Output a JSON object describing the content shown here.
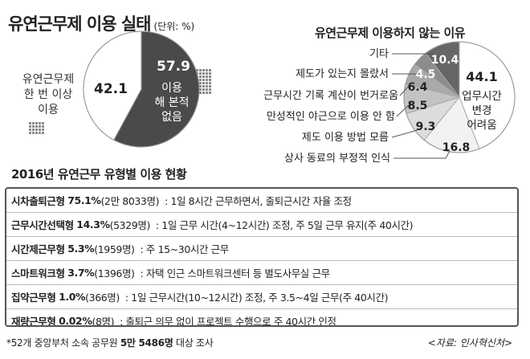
{
  "header": {
    "title": "유연근무제 이용 실태",
    "unit": "(단위: %)",
    "right_title": "유연근무제 이용하지 않는 이유"
  },
  "chart_data": [
    {
      "type": "pie",
      "slices": [
        {
          "name": "이용 해 본적 없음",
          "value": 57.9,
          "color": "#4a4a4a"
        },
        {
          "name": "유연근무제 한 번 이상 이용",
          "value": 42.1,
          "color": "#ffffff"
        }
      ],
      "label_left": "유연근무제 한 번 이상 이용",
      "value_dark": "57.9",
      "label_dark": [
        "이용",
        "해 본적",
        "없음"
      ],
      "value_white": "42.1"
    },
    {
      "type": "pie",
      "slices": [
        {
          "name": "업무시간 변경 어려움",
          "value": 44.1,
          "color": "#ffffff"
        },
        {
          "name": "상사 동료의 부정적 인식",
          "value": 16.8,
          "color": "#f2f2f2"
        },
        {
          "name": "제도 이용 방법 모름",
          "value": 9.3,
          "color": "#dcdcdc"
        },
        {
          "name": "만성적인 야근으로 이용 안 함",
          "value": 8.5,
          "color": "#c3c3c3"
        },
        {
          "name": "근무시간 기록 계산이 번거로움",
          "value": 6.4,
          "color": "#a9a9a9"
        },
        {
          "name": "제도가 있는지 몰랐서",
          "value": 4.5,
          "color": "#8c8c8c"
        },
        {
          "name": "기타",
          "value": 10.4,
          "color": "#666666"
        }
      ],
      "main_label": [
        "업무시간",
        "변경",
        "어려움"
      ],
      "labels": {
        "etc": "기타",
        "unknown": "제도가 있는지 몰랐서",
        "record": "근무시간 기록 계산이 번거로움",
        "overtime": "만성적인 야근으로 이용 안 함",
        "method": "제도 이용 방법 모름",
        "boss": "상사 동료의 부정적 인식"
      },
      "values": {
        "main": "44.1",
        "boss": "16.8",
        "method": "9.3",
        "overtime": "8.5",
        "record": "6.4",
        "unknown": "4.5",
        "etc": "10.4"
      }
    }
  ],
  "section": {
    "title": "2016년 유연근무 유형별 이용 현황",
    "rows": [
      {
        "name": "시차출퇴근형",
        "pct": "75.1%",
        "count": "(2만 8033명)",
        "desc": ": 1일 8시간 근무하면서, 출퇴근시간 자율 조정"
      },
      {
        "name": "근무시간선택형",
        "pct": "14.3%",
        "count": "(5329명)",
        "desc": ": 1일 근무 시간(4~12시간) 조정, 주 5일 근무 유지(주 40시간)"
      },
      {
        "name": "시간제근무형",
        "pct": "5.3%",
        "count": "(1959명)",
        "desc": ": 주 15~30시간 근무"
      },
      {
        "name": "스마트워크형",
        "pct": "3.7%",
        "count": "(1396명)",
        "desc": ": 자택 인근 스마트워크센터 등 별도사무실 근무"
      },
      {
        "name": "집약근무형",
        "pct": "1.0%",
        "count": "(366명)",
        "desc": ": 1일 근무시간(10~12시간) 조정, 주 3.5~4일 근무(주 40시간)"
      },
      {
        "name": "재량근무형",
        "pct": "0.02%",
        "count": "(8명)",
        "desc": ": 출퇴근 의무 없이 프로젝트 수행으로 주 40시간 인정"
      }
    ]
  },
  "footer": {
    "note_prefix": "*52개 중앙부처 소속 공무원",
    "note_bold": "5만 5486명",
    "note_suffix": "대상 조사",
    "source": "<자료: 인사혁신처>"
  },
  "colors": {
    "dark_slice": "#4a4a4a",
    "dots": "#8a8a8a",
    "border": "#555555"
  }
}
